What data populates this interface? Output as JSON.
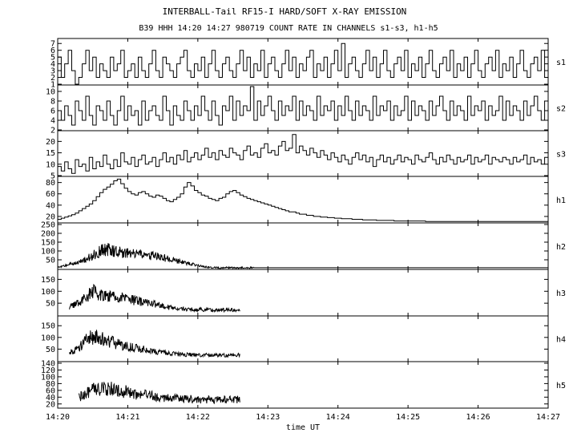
{
  "title": "INTERBALL-Tail RF15-I HARD/SOFT X-RAY EMISSION",
  "subtitle": "B39 HHH 14:20 14:27 980719  COUNT RATE IN CHANNELS s1-s3, h1-h5",
  "xlabel": "time UT",
  "x_ticks": [
    "14:20",
    "14:21",
    "14:22",
    "14:23",
    "14:24",
    "14:25",
    "14:26",
    "14:27"
  ],
  "chart_data": [
    {
      "type": "line",
      "channel": "s1",
      "ylim": [
        1,
        7.5
      ],
      "y_ticks": [
        1,
        2,
        3,
        4,
        5,
        6,
        7
      ],
      "x_start": "14:20:00",
      "x_end": "14:27:00",
      "time_step_s": 3,
      "step": true,
      "values": [
        5,
        2,
        4,
        6,
        3,
        1,
        2,
        4,
        6,
        3,
        5,
        2,
        4,
        3,
        2,
        5,
        3,
        4,
        6,
        2,
        3,
        4,
        2,
        5,
        3,
        2,
        4,
        6,
        3,
        2,
        5,
        4,
        3,
        2,
        4,
        5,
        6,
        3,
        2,
        4,
        3,
        5,
        2,
        4,
        6,
        3,
        2,
        4,
        5,
        3,
        2,
        4,
        6,
        3,
        5,
        2,
        4,
        3,
        6,
        2,
        4,
        5,
        3,
        2,
        4,
        6,
        3,
        5,
        2,
        4,
        3,
        5,
        6,
        2,
        4,
        3,
        5,
        2,
        4,
        6,
        3,
        7,
        2,
        4,
        5,
        3,
        2,
        4,
        6,
        3,
        5,
        2,
        4,
        6,
        3,
        2,
        4,
        5,
        3,
        6,
        2,
        4,
        3,
        5,
        2,
        4,
        6,
        3,
        2,
        4,
        5,
        3,
        6,
        2,
        4,
        3,
        5,
        2,
        4,
        6,
        3,
        2,
        4,
        5,
        3,
        6,
        2,
        4,
        3,
        5,
        2,
        4,
        6,
        3,
        2,
        4,
        5,
        3,
        6,
        2
      ]
    },
    {
      "type": "line",
      "channel": "s2",
      "ylim": [
        2,
        11
      ],
      "y_ticks": [
        2,
        4,
        6,
        8,
        10
      ],
      "x_start": "14:20:00",
      "x_end": "14:27:00",
      "time_step_s": 3,
      "step": true,
      "values": [
        6,
        4,
        7,
        5,
        3,
        8,
        6,
        4,
        9,
        5,
        3,
        7,
        6,
        4,
        8,
        5,
        3,
        6,
        9,
        4,
        7,
        5,
        6,
        3,
        8,
        4,
        6,
        7,
        5,
        4,
        9,
        6,
        3,
        7,
        5,
        4,
        8,
        6,
        4,
        7,
        5,
        9,
        6,
        4,
        8,
        5,
        3,
        7,
        6,
        9,
        4,
        8,
        5,
        7,
        6,
        11,
        4,
        8,
        5,
        7,
        9,
        6,
        4,
        8,
        5,
        7,
        6,
        9,
        4,
        8,
        5,
        7,
        6,
        4,
        9,
        5,
        7,
        6,
        8,
        4,
        7,
        5,
        9,
        6,
        4,
        8,
        5,
        7,
        6,
        4,
        9,
        5,
        7,
        6,
        8,
        4,
        7,
        5,
        6,
        9,
        4,
        8,
        5,
        7,
        6,
        4,
        8,
        5,
        7,
        9,
        6,
        4,
        8,
        5,
        7,
        6,
        4,
        9,
        5,
        7,
        6,
        8,
        4,
        7,
        5,
        6,
        9,
        4,
        8,
        5,
        7,
        6,
        4,
        8,
        5,
        7,
        9,
        6,
        4,
        8
      ]
    },
    {
      "type": "line",
      "channel": "s3",
      "ylim": [
        5,
        24
      ],
      "y_ticks": [
        5,
        10,
        15,
        20
      ],
      "x_start": "14:20:00",
      "x_end": "14:27:00",
      "time_step_s": 3,
      "step": true,
      "values": [
        9,
        7,
        11,
        8,
        6,
        12,
        9,
        10,
        7,
        13,
        8,
        11,
        9,
        14,
        10,
        8,
        12,
        9,
        15,
        11,
        10,
        13,
        9,
        12,
        14,
        10,
        11,
        13,
        9,
        12,
        15,
        11,
        13,
        10,
        14,
        12,
        16,
        11,
        13,
        15,
        12,
        14,
        17,
        13,
        15,
        12,
        16,
        14,
        13,
        17,
        15,
        14,
        12,
        16,
        18,
        14,
        15,
        13,
        17,
        19,
        15,
        16,
        14,
        18,
        20,
        16,
        17,
        23,
        15,
        18,
        16,
        14,
        17,
        15,
        13,
        16,
        14,
        12,
        15,
        13,
        11,
        14,
        12,
        10,
        13,
        15,
        12,
        14,
        11,
        13,
        9,
        12,
        14,
        11,
        13,
        10,
        12,
        14,
        11,
        13,
        12,
        10,
        14,
        12,
        11,
        13,
        15,
        12,
        10,
        13,
        11,
        14,
        12,
        10,
        13,
        11,
        12,
        14,
        10,
        13,
        11,
        12,
        14,
        10,
        13,
        12,
        11,
        13,
        12,
        10,
        13,
        11,
        12,
        14,
        10,
        13,
        11,
        12,
        10,
        13
      ]
    },
    {
      "type": "line",
      "channel": "h1",
      "ylim": [
        10,
        88
      ],
      "y_ticks": [
        20,
        40,
        60,
        80
      ],
      "x_start": "14:20:00",
      "x_end": "14:27:00",
      "time_step_s": 3,
      "step": true,
      "values": [
        15,
        17,
        19,
        21,
        23,
        26,
        30,
        34,
        38,
        42,
        48,
        55,
        62,
        68,
        72,
        77,
        83,
        86,
        78,
        70,
        64,
        60,
        58,
        62,
        64,
        60,
        56,
        54,
        58,
        56,
        52,
        48,
        46,
        50,
        54,
        60,
        72,
        80,
        74,
        66,
        62,
        58,
        56,
        52,
        50,
        48,
        52,
        54,
        60,
        64,
        66,
        62,
        58,
        55,
        52,
        50,
        48,
        46,
        44,
        42,
        40,
        38,
        36,
        34,
        32,
        30,
        28,
        28,
        26,
        24,
        24,
        22,
        22,
        20,
        20,
        19,
        19,
        18,
        18,
        17,
        17,
        16,
        16,
        16,
        15,
        15,
        15,
        14,
        14,
        14,
        14,
        13,
        13,
        13,
        13,
        13,
        12,
        12,
        12,
        12,
        12,
        12,
        12,
        12,
        12,
        11,
        11,
        11,
        11,
        11,
        11,
        11,
        11,
        11,
        11,
        11,
        11,
        11,
        11,
        11,
        11,
        11,
        11,
        11,
        11,
        11,
        11,
        11,
        11,
        11,
        11,
        11,
        11,
        11,
        11,
        11,
        11,
        11,
        11,
        11
      ]
    },
    {
      "type": "line",
      "channel": "h2",
      "ylim": [
        0,
        250
      ],
      "y_ticks": [
        50,
        100,
        150,
        200,
        250
      ],
      "x_start": "14:20:00",
      "x_end": "14:27:00",
      "data_end": "14:22:48",
      "time_step_s": 2,
      "noisy": true,
      "values": [
        5,
        9,
        12,
        16,
        20,
        24,
        28,
        31,
        34,
        38,
        42,
        47,
        53,
        60,
        67,
        74,
        82,
        90,
        98,
        104,
        108,
        110,
        109,
        106,
        103,
        100,
        96,
        93,
        90,
        88,
        86,
        84,
        82,
        81,
        80,
        79,
        78,
        77,
        76,
        75,
        74,
        72,
        70,
        68,
        66,
        63,
        60,
        57,
        54,
        51,
        48,
        45,
        42,
        39,
        36,
        33,
        30,
        27,
        24,
        21,
        18,
        15,
        12,
        10,
        8,
        6,
        5,
        5,
        5,
        5,
        5,
        5,
        5,
        5,
        5,
        5,
        5,
        5,
        5,
        5,
        5,
        5,
        5,
        5
      ]
    },
    {
      "type": "line",
      "channel": "h3",
      "ylim": [
        0,
        185
      ],
      "y_ticks": [
        50,
        100,
        150
      ],
      "x_start": "14:20:00",
      "x_end": "14:27:00",
      "data_start": "14:20:10",
      "data_end": "14:22:36",
      "time_step_s": 2,
      "noisy": true,
      "values": [
        32,
        36,
        41,
        47,
        54,
        62,
        70,
        78,
        86,
        92,
        96,
        98,
        96,
        93,
        90,
        88,
        86,
        84,
        82,
        80,
        78,
        76,
        74,
        72,
        70,
        68,
        66,
        64,
        62,
        60,
        58,
        56,
        54,
        52,
        50,
        48,
        46,
        44,
        42,
        40,
        38,
        36,
        34,
        32,
        31,
        30,
        29,
        28,
        27,
        26,
        26,
        25,
        25,
        24,
        24,
        23,
        23,
        23,
        22,
        22,
        22,
        22,
        22,
        22,
        22,
        22,
        22,
        22,
        22,
        22,
        22,
        22,
        22,
        22
      ]
    },
    {
      "type": "line",
      "channel": "h4",
      "ylim": [
        0,
        185
      ],
      "y_ticks": [
        50,
        100,
        150
      ],
      "x_start": "14:20:00",
      "x_end": "14:27:00",
      "data_start": "14:20:10",
      "data_end": "14:22:36",
      "time_step_s": 2,
      "noisy": true,
      "values": [
        36,
        40,
        45,
        51,
        58,
        66,
        75,
        84,
        93,
        100,
        104,
        105,
        103,
        100,
        96,
        92,
        88,
        84,
        80,
        77,
        74,
        71,
        68,
        66,
        64,
        62,
        60,
        58,
        56,
        54,
        52,
        50,
        48,
        46,
        44,
        42,
        40,
        38,
        37,
        36,
        35,
        34,
        33,
        32,
        31,
        30,
        29,
        28,
        28,
        27,
        27,
        26,
        26,
        25,
        25,
        25,
        24,
        24,
        24,
        24,
        24,
        24,
        24,
        24,
        24,
        24,
        24,
        24,
        24,
        24,
        24,
        24,
        24,
        24
      ]
    },
    {
      "type": "line",
      "channel": "h5",
      "ylim": [
        10,
        140
      ],
      "y_ticks": [
        20,
        40,
        60,
        80,
        100,
        120,
        140
      ],
      "x_start": "14:20:00",
      "x_end": "14:27:00",
      "data_start": "14:20:18",
      "data_end": "14:22:36",
      "time_step_s": 2,
      "noisy": true,
      "values": [
        40,
        44,
        48,
        52,
        55,
        58,
        60,
        62,
        63,
        64,
        65,
        66,
        66,
        67,
        66,
        65,
        64,
        62,
        60,
        58,
        56,
        54,
        52,
        51,
        50,
        49,
        48,
        47,
        46,
        45,
        44,
        43,
        42,
        41,
        40,
        40,
        39,
        38,
        38,
        37,
        37,
        36,
        36,
        35,
        35,
        35,
        34,
        34,
        34,
        33,
        33,
        33,
        33,
        33,
        33,
        33,
        33,
        33,
        33,
        33,
        33,
        33,
        33,
        33,
        33,
        33,
        33,
        33,
        33,
        33
      ]
    }
  ]
}
